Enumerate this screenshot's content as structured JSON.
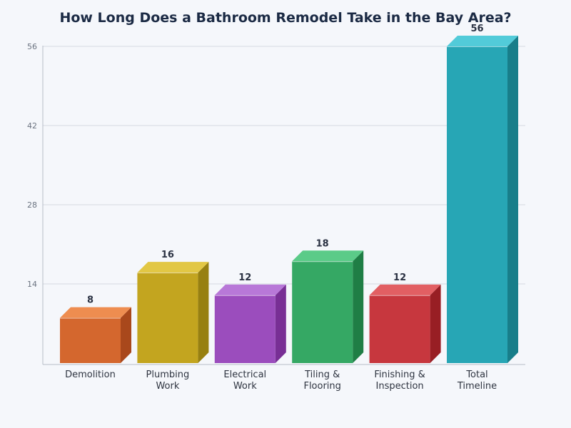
{
  "chart_data": {
    "type": "bar",
    "title": "How Long Does a Bathroom Remodel Take in the Bay Area?",
    "xlabel": "",
    "ylabel": "",
    "categories": [
      [
        "Demolition"
      ],
      [
        "Plumbing",
        "Work"
      ],
      [
        "Electrical",
        "Work"
      ],
      [
        "Tiling &",
        "Flooring"
      ],
      [
        "Finishing &",
        "Inspection"
      ],
      [
        "Total",
        "Timeline"
      ]
    ],
    "values": [
      8,
      16,
      12,
      18,
      12,
      56
    ],
    "data_labels": [
      "8",
      "16",
      "12",
      "18",
      "12",
      "56"
    ],
    "ylim": [
      0,
      56
    ],
    "yticks": [
      14,
      28,
      42,
      56
    ],
    "ytick_labels": [
      "14",
      "28",
      "42",
      "56"
    ],
    "grid": true,
    "legend": "none",
    "colors": {
      "front": [
        "#d4672e",
        "#c3a51f",
        "#9b4dbd",
        "#35a864",
        "#c7373e",
        "#27a6b5"
      ],
      "top": [
        "#ee8d50",
        "#e2c744",
        "#b878d8",
        "#5bcb88",
        "#e25f63",
        "#52cbd9"
      ],
      "side": [
        "#a9481c",
        "#978011",
        "#782f95",
        "#1f7e45",
        "#981e24",
        "#187e8a"
      ],
      "grid": "#d5d9e2",
      "axis": "#b7bcc7"
    }
  }
}
